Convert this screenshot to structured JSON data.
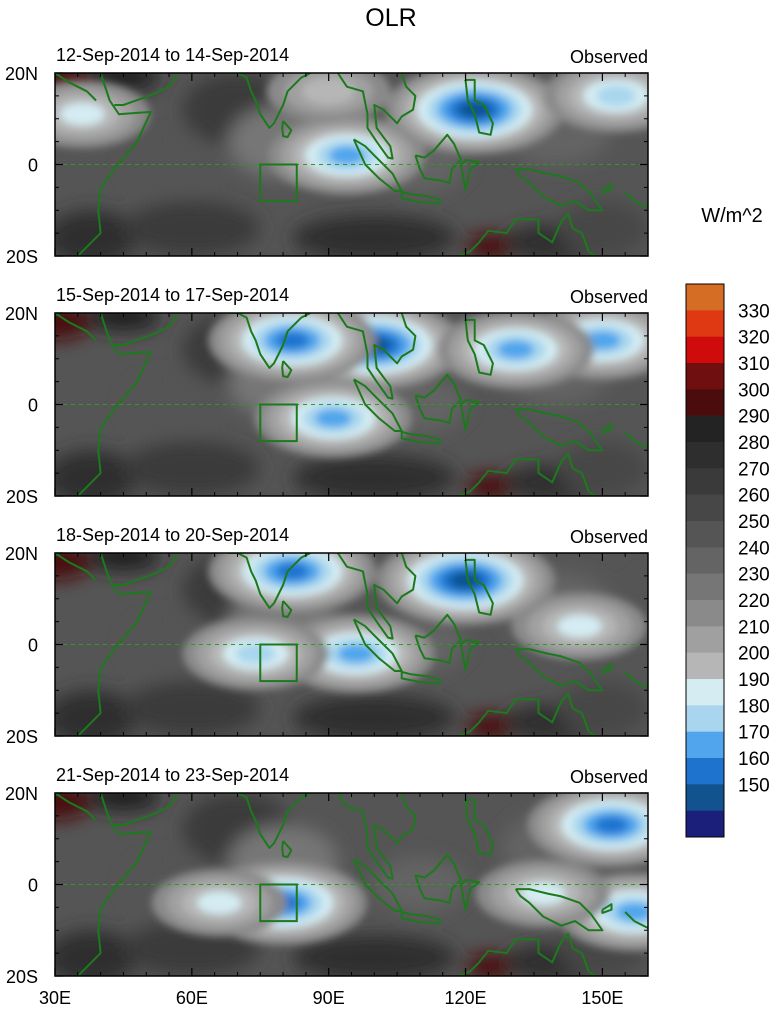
{
  "chart_data": {
    "type": "heatmap",
    "title": "OLR",
    "units_label": "W/m^2",
    "x_ticks": [
      "30E",
      "60E",
      "90E",
      "120E",
      "150E"
    ],
    "x_tick_values": [
      30,
      60,
      90,
      120,
      150
    ],
    "xlim": [
      30,
      160
    ],
    "y_ticks": [
      "20N",
      "0",
      "20S"
    ],
    "y_tick_values": [
      20,
      0,
      -20
    ],
    "ylim": [
      -20,
      20
    ],
    "colorbar": {
      "levels": [
        150,
        160,
        170,
        180,
        190,
        200,
        210,
        220,
        230,
        240,
        250,
        260,
        270,
        280,
        290,
        300,
        310,
        320,
        330
      ],
      "colors": [
        "#1c1f7a",
        "#11528f",
        "#1e73cf",
        "#50a5ec",
        "#a9d6ee",
        "#d4ecf2",
        "#b6b6b6",
        "#a0a0a0",
        "#8a8a8a",
        "#767676",
        "#646464",
        "#555555",
        "#474747",
        "#3a3a3a",
        "#2e2e2e",
        "#232323",
        "#4a0c0c",
        "#6f0f10",
        "#cf0b0b",
        "#de3912",
        "#d66d25"
      ]
    },
    "panels": [
      {
        "left_label": "12-Sep-2014 to 14-Sep-2014",
        "right_label": "Observed",
        "convective_features": [
          {
            "lon": 122,
            "lat": 12,
            "min_olr": 150
          },
          {
            "lon": 94,
            "lat": 2,
            "min_olr": 170
          },
          {
            "lon": 153,
            "lat": 15,
            "min_olr": 180
          },
          {
            "lon": 36,
            "lat": 11,
            "min_olr": 190
          },
          {
            "lon": 90,
            "lat": 16,
            "min_olr": 200
          }
        ]
      },
      {
        "left_label": "15-Sep-2014 to 17-Sep-2014",
        "right_label": "Observed",
        "convective_features": [
          {
            "lon": 100,
            "lat": 13,
            "min_olr": 150
          },
          {
            "lon": 82,
            "lat": 14,
            "min_olr": 160
          },
          {
            "lon": 150,
            "lat": 14,
            "min_olr": 170
          },
          {
            "lon": 131,
            "lat": 12,
            "min_olr": 170
          },
          {
            "lon": 91,
            "lat": -3,
            "min_olr": 170
          }
        ]
      },
      {
        "left_label": "18-Sep-2014 to 20-Sep-2014",
        "right_label": "Observed",
        "convective_features": [
          {
            "lon": 120,
            "lat": 14,
            "min_olr": 150
          },
          {
            "lon": 82,
            "lat": 16,
            "min_olr": 160
          },
          {
            "lon": 96,
            "lat": -2,
            "min_olr": 170
          },
          {
            "lon": 145,
            "lat": 4,
            "min_olr": 190
          },
          {
            "lon": 74,
            "lat": -2,
            "min_olr": 180
          }
        ]
      },
      {
        "left_label": "21-Sep-2014 to 23-Sep-2014",
        "right_label": "Observed",
        "convective_features": [
          {
            "lon": 80,
            "lat": -4,
            "min_olr": 160
          },
          {
            "lon": 152,
            "lat": 13,
            "min_olr": 160
          },
          {
            "lon": 157,
            "lat": -6,
            "min_olr": 170
          },
          {
            "lon": 66,
            "lat": -4,
            "min_olr": 190
          },
          {
            "lon": 137,
            "lat": -2,
            "min_olr": 190
          }
        ]
      }
    ]
  }
}
